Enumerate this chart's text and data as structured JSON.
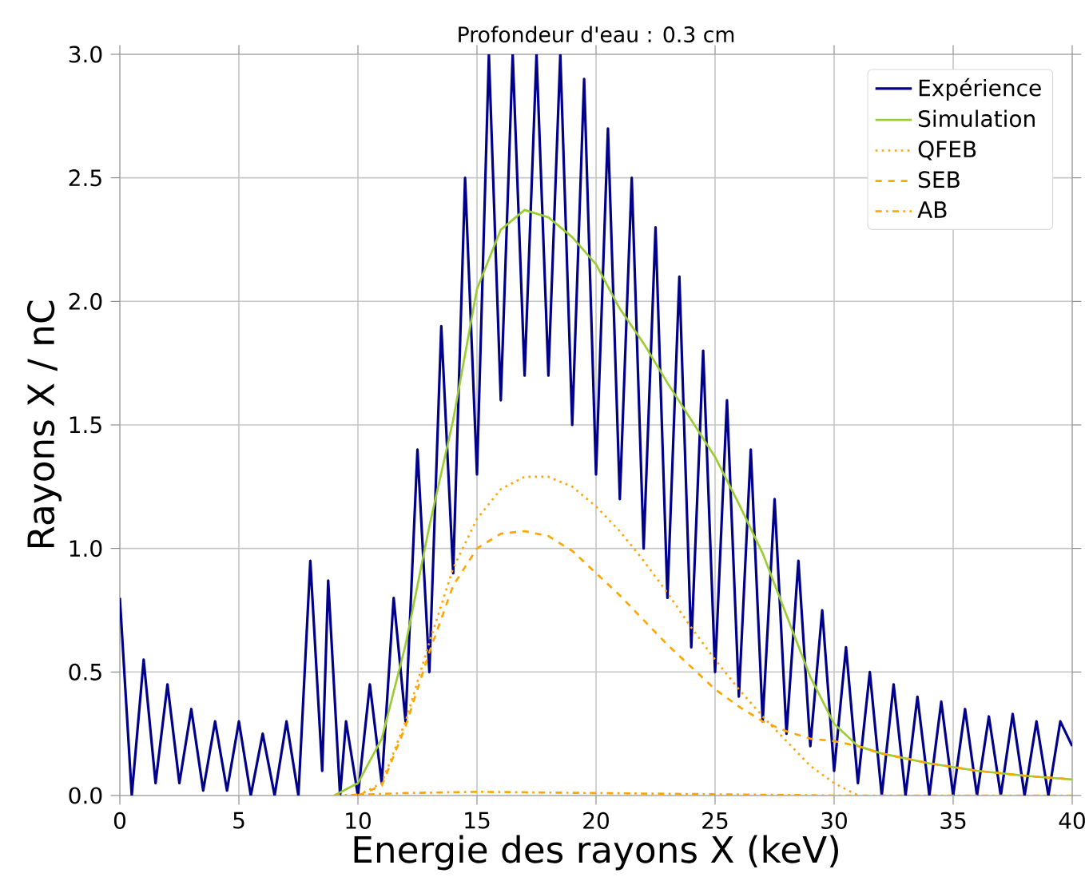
{
  "chart_data": {
    "type": "line",
    "title": "Profondeur d'eau : 0.3 cm",
    "xlabel": "Energie des rayons X (keV)",
    "ylabel": "Rayons X / nC",
    "xlim": [
      0,
      40
    ],
    "ylim": [
      0,
      3
    ],
    "xticks": [
      0,
      5,
      10,
      15,
      20,
      25,
      30,
      35,
      40
    ],
    "yticks": [
      {
        "value": 0,
        "label": "0.0"
      },
      {
        "value": 0.5,
        "label": "0.5"
      },
      {
        "value": 1,
        "label": "1.0"
      },
      {
        "value": 1.5,
        "label": "1.5"
      },
      {
        "value": 2,
        "label": "2.0"
      },
      {
        "value": 2.5,
        "label": "2.5"
      },
      {
        "value": 3,
        "label": "3.0"
      }
    ],
    "grid": true,
    "legend": "top right",
    "series": [
      {
        "name": "Expérience",
        "color": "#00008b",
        "line_style": "solid",
        "x": [
          0,
          0.5,
          1,
          1.5,
          2,
          2.5,
          3,
          3.5,
          4,
          4.5,
          5,
          5.5,
          6,
          6.5,
          7,
          7.5,
          8,
          8.5,
          8.75,
          9.25,
          9.5,
          10,
          10.5,
          11,
          11.5,
          12,
          12.5,
          13,
          13.5,
          14,
          14.5,
          15,
          15.5,
          16,
          16.5,
          17,
          17.5,
          18,
          18.5,
          19,
          19.5,
          20,
          20.5,
          21,
          21.5,
          22,
          22.5,
          23,
          23.5,
          24,
          24.5,
          25,
          25.5,
          26,
          26.5,
          27,
          27.5,
          28,
          28.5,
          29,
          29.5,
          30,
          30.5,
          31,
          31.5,
          32,
          32.5,
          33,
          33.5,
          34,
          34.5,
          35,
          35.5,
          36,
          36.5,
          37,
          37.5,
          38,
          38.5,
          39,
          39.5,
          40
        ],
        "values": [
          0.8,
          0,
          0.55,
          0.05,
          0.45,
          0.05,
          0.35,
          0.02,
          0.3,
          0.02,
          0.3,
          0,
          0.25,
          0,
          0.3,
          0,
          0.95,
          0.1,
          0.87,
          0,
          0.3,
          0,
          0.45,
          0.05,
          0.8,
          0.3,
          1.4,
          0.5,
          1.9,
          0.9,
          2.5,
          1.3,
          3.0,
          1.6,
          3.0,
          1.7,
          3.0,
          1.7,
          3.0,
          1.5,
          2.9,
          1.3,
          2.7,
          1.2,
          2.5,
          1.0,
          2.3,
          0.8,
          2.1,
          0.6,
          1.8,
          0.5,
          1.6,
          0.4,
          1.4,
          0.3,
          1.2,
          0.25,
          0.95,
          0.2,
          0.75,
          0.1,
          0.6,
          0.05,
          0.5,
          0,
          0.45,
          0,
          0.4,
          0,
          0.38,
          0,
          0.35,
          0,
          0.32,
          0,
          0.33,
          0,
          0.3,
          0,
          0.3,
          0.2
        ]
      },
      {
        "name": "Simulation",
        "color": "#9acd32",
        "line_style": "solid",
        "x": [
          9,
          10,
          11,
          12,
          13,
          14,
          15,
          16,
          17,
          18,
          19,
          20,
          21,
          22,
          23,
          24,
          25,
          26,
          27,
          28,
          29,
          30,
          31,
          32,
          34,
          36,
          38,
          40
        ],
        "values": [
          0,
          0.05,
          0.23,
          0.61,
          1.09,
          1.52,
          2.05,
          2.29,
          2.37,
          2.34,
          2.26,
          2.15,
          1.97,
          1.83,
          1.67,
          1.52,
          1.37,
          1.18,
          0.98,
          0.73,
          0.48,
          0.29,
          0.2,
          0.17,
          0.13,
          0.1,
          0.08,
          0.065
        ]
      },
      {
        "name": "QFEB",
        "color": "#ffa500",
        "line_style": "dotted",
        "x": [
          10,
          11,
          12,
          13,
          14,
          15,
          16,
          17,
          18,
          19,
          20,
          21,
          22,
          23,
          24,
          25,
          26,
          27,
          28,
          29,
          30,
          31
        ],
        "values": [
          0,
          0.05,
          0.3,
          0.62,
          0.92,
          1.12,
          1.24,
          1.29,
          1.29,
          1.25,
          1.17,
          1.07,
          0.95,
          0.82,
          0.68,
          0.55,
          0.43,
          0.32,
          0.22,
          0.12,
          0.05,
          0
        ]
      },
      {
        "name": "SEB",
        "color": "#ffa500",
        "line_style": "dashed",
        "x": [
          10,
          11,
          12,
          13,
          14,
          15,
          16,
          17,
          18,
          19,
          20,
          21,
          22,
          23,
          24,
          25,
          26,
          27,
          28,
          29,
          30,
          31,
          32,
          34,
          36,
          38,
          40
        ],
        "values": [
          0,
          0.04,
          0.28,
          0.58,
          0.85,
          1.0,
          1.06,
          1.07,
          1.05,
          0.99,
          0.9,
          0.81,
          0.71,
          0.61,
          0.52,
          0.43,
          0.36,
          0.3,
          0.26,
          0.23,
          0.22,
          0.2,
          0.17,
          0.13,
          0.1,
          0.08,
          0.065
        ]
      },
      {
        "name": "AB",
        "color": "#ffa500",
        "line_style": "dashdot",
        "x": [
          9,
          12,
          15,
          20,
          25,
          30,
          40
        ],
        "values": [
          0,
          0.01,
          0.015,
          0.01,
          0.005,
          0,
          0
        ]
      }
    ]
  }
}
